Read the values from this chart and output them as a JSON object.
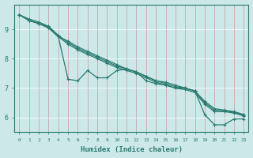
{
  "xlabel": "Humidex (Indice chaleur)",
  "ylabel": "",
  "bg_color": "#cce8e8",
  "grid_color": "#aacccc",
  "line_color": "#2a7a70",
  "xlim": [
    -0.5,
    23.5
  ],
  "ylim": [
    5.5,
    9.85
  ],
  "yticks": [
    6,
    7,
    8,
    9
  ],
  "xticks": [
    0,
    1,
    2,
    3,
    4,
    5,
    6,
    7,
    8,
    9,
    10,
    11,
    12,
    13,
    14,
    15,
    16,
    17,
    18,
    19,
    20,
    21,
    22,
    23
  ],
  "series": [
    [
      9.5,
      9.3,
      9.2,
      9.1,
      8.75,
      7.3,
      7.25,
      7.6,
      7.35,
      7.35,
      7.6,
      7.65,
      7.55,
      7.25,
      7.15,
      7.1,
      7.0,
      7.0,
      6.9,
      6.1,
      5.75,
      5.75,
      5.95,
      5.95
    ],
    [
      9.5,
      9.3,
      9.2,
      9.05,
      8.75,
      8.6,
      8.4,
      8.25,
      8.1,
      7.95,
      7.8,
      7.65,
      7.55,
      7.4,
      7.25,
      7.2,
      7.1,
      7.0,
      6.9,
      6.55,
      6.3,
      6.25,
      6.2,
      6.1
    ],
    [
      9.5,
      9.3,
      9.2,
      9.05,
      8.75,
      8.5,
      8.3,
      8.15,
      8.0,
      7.85,
      7.7,
      7.6,
      7.5,
      7.35,
      7.2,
      7.1,
      7.0,
      6.95,
      6.85,
      6.45,
      6.2,
      6.2,
      6.15,
      6.05
    ],
    [
      9.5,
      9.35,
      9.25,
      9.1,
      8.8,
      8.55,
      8.35,
      8.2,
      8.05,
      7.9,
      7.75,
      7.65,
      7.55,
      7.4,
      7.25,
      7.15,
      7.05,
      7.0,
      6.9,
      6.5,
      6.25,
      6.22,
      6.18,
      6.08
    ]
  ]
}
